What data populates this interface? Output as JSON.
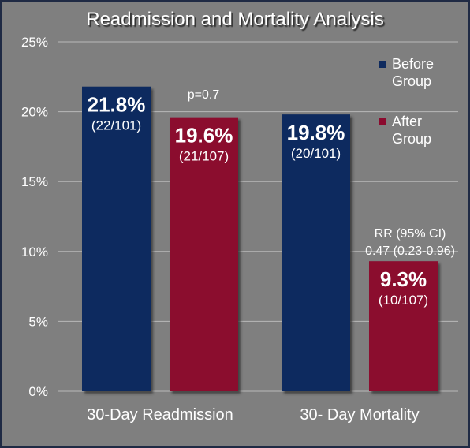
{
  "chart_data": {
    "type": "bar",
    "title": "Readmission and Mortality Analysis",
    "xlabel": "",
    "ylabel": "",
    "ylim": [
      0,
      25
    ],
    "yticks": [
      {
        "value": 0,
        "label": "0%"
      },
      {
        "value": 5,
        "label": "5%"
      },
      {
        "value": 10,
        "label": "10%"
      },
      {
        "value": 15,
        "label": "15%"
      },
      {
        "value": 20,
        "label": "20%"
      },
      {
        "value": 25,
        "label": "25%"
      }
    ],
    "grid": true,
    "legend_position": "top-right",
    "categories": [
      "30-Day Readmission",
      "30- Day Mortality"
    ],
    "series": [
      {
        "name": "Before Group",
        "legend_lines": [
          "Before",
          "Group"
        ],
        "color": "#0e2a5e",
        "values": [
          21.8,
          19.8
        ],
        "value_labels": [
          "21.8%",
          "19.8%"
        ],
        "count_labels": [
          "(22/101)",
          "(20/101)"
        ]
      },
      {
        "name": "After Group",
        "legend_lines": [
          "After",
          "Group"
        ],
        "color": "#8b0a2e",
        "values": [
          19.6,
          9.3
        ],
        "value_labels": [
          "19.6%",
          "9.3%"
        ],
        "count_labels": [
          "(21/107)",
          "(10/107)"
        ]
      }
    ],
    "annotations": [
      {
        "category": 0,
        "lines": [
          "p=0.7"
        ]
      },
      {
        "category": 1,
        "lines": [
          "RR (95% CI)",
          "0.47 (0.23-0.96)"
        ]
      }
    ]
  }
}
